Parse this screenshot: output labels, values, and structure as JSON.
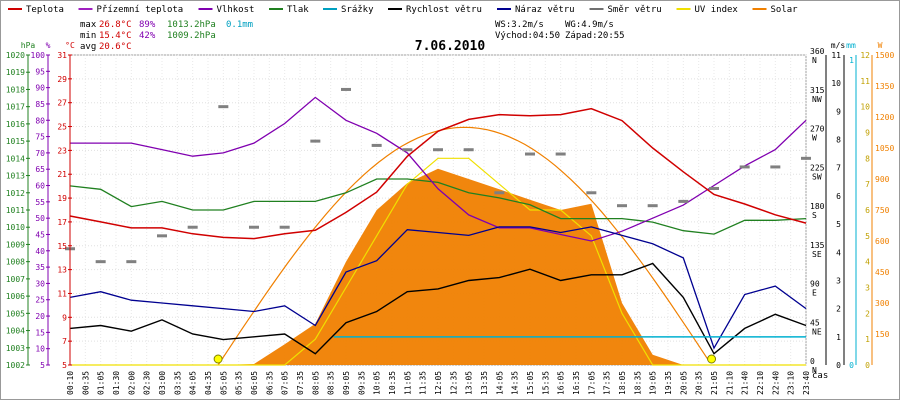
{
  "legend": [
    {
      "label": "Teplota",
      "color": "#d00000"
    },
    {
      "label": "Přízemní teplota",
      "color": "#a020c0"
    },
    {
      "label": "Vlhkost",
      "color": "#8000b0"
    },
    {
      "label": "Tlak",
      "color": "#208020"
    },
    {
      "label": "Srážky",
      "color": "#00a0c0"
    },
    {
      "label": "Rychlost větru",
      "color": "#000000"
    },
    {
      "label": "Náraz větru",
      "color": "#000090"
    },
    {
      "label": "Směr větru",
      "color": "#707070"
    },
    {
      "label": "UV index",
      "color": "#f0e000"
    },
    {
      "label": "Solar",
      "color": "#f08000"
    }
  ],
  "stats": {
    "max": {
      "label": "max",
      "temp": "26.8°C",
      "hum": "89%",
      "pres": "1013.2hPa",
      "rain": "0.1mm"
    },
    "min": {
      "label": "min",
      "temp": "15.4°C",
      "hum": "42%",
      "pres": "1009.2hPa"
    },
    "avg": {
      "label": "avg",
      "temp": "20.6°C"
    }
  },
  "info": {
    "ws": "WS:3.2m/s",
    "wg": "WG:4.9m/s",
    "sunrise": "Východ:04:50",
    "sunset": "Západ:20:55"
  },
  "date": "7.06.2010",
  "xaxis_title": "čas",
  "colors": {
    "temp": "#d00000",
    "hum": "#8000b0",
    "pres": "#208020",
    "rain": "#00b0d0",
    "wind": "#000000",
    "gust": "#000090",
    "dir": "#808080",
    "uv": "#f0e000",
    "solar": "#f08000"
  },
  "chart_data": {
    "type": "line",
    "title": "7.06.2010",
    "xlabel": "čas",
    "x_ticks": [
      "00:10",
      "00:35",
      "01:05",
      "01:30",
      "02:00",
      "02:30",
      "03:00",
      "03:35",
      "04:05",
      "04:35",
      "05:05",
      "05:35",
      "06:05",
      "06:35",
      "07:05",
      "07:35",
      "08:05",
      "08:35",
      "09:05",
      "09:35",
      "10:05",
      "10:35",
      "11:05",
      "11:35",
      "12:05",
      "12:35",
      "13:05",
      "13:35",
      "14:05",
      "14:35",
      "15:05",
      "15:35",
      "16:05",
      "16:35",
      "17:05",
      "17:35",
      "18:05",
      "18:35",
      "19:05",
      "19:35",
      "20:05",
      "20:35",
      "21:05",
      "21:10",
      "21:40",
      "22:10",
      "22:40",
      "23:10",
      "23:40"
    ],
    "axes": {
      "pressure": {
        "unit": "hPa",
        "range": [
          1002,
          1020
        ],
        "ticks": [
          1002,
          1003,
          1004,
          1005,
          1006,
          1007,
          1008,
          1009,
          1010,
          1011,
          1012,
          1013,
          1014,
          1015,
          1016,
          1017,
          1018,
          1019,
          1020
        ]
      },
      "humidity": {
        "unit": "%",
        "range": [
          5,
          100
        ],
        "ticks": [
          5,
          10,
          15,
          20,
          25,
          30,
          35,
          40,
          45,
          50,
          55,
          60,
          65,
          70,
          75,
          80,
          85,
          90,
          95,
          100
        ]
      },
      "temperature": {
        "unit": "°C",
        "range": [
          5,
          31
        ],
        "ticks": [
          5,
          7,
          9,
          11,
          13,
          15,
          17,
          19,
          21,
          23,
          25,
          27,
          29,
          31
        ]
      },
      "wind_dir": {
        "ticks": [
          "0 N",
          "45 NE",
          "90 E",
          "135 SE",
          "180 S",
          "225 SW",
          "270 W",
          "315 NW",
          "360 N"
        ]
      },
      "wind": {
        "unit": "m/s",
        "range": [
          0,
          11
        ],
        "ticks": [
          0,
          1,
          2,
          3,
          4,
          5,
          6,
          7,
          8,
          9,
          10,
          11
        ]
      },
      "rain": {
        "unit": "mm",
        "ticks": [
          0,
          1
        ]
      },
      "solar": {
        "unit": "W",
        "range": [
          0,
          1500
        ],
        "ticks": [
          0,
          150,
          300,
          450,
          600,
          750,
          900,
          1050,
          1200,
          1350,
          1500
        ],
        "uv_ticks": [
          0,
          1,
          2,
          3,
          4,
          5,
          6,
          7,
          8,
          9,
          10,
          11,
          12
        ]
      }
    },
    "hours": [
      0,
      1,
      2,
      3,
      4,
      5,
      6,
      7,
      8,
      9,
      10,
      11,
      12,
      13,
      14,
      15,
      16,
      17,
      18,
      19,
      20,
      21,
      22,
      23,
      24
    ],
    "series": [
      {
        "name": "Teplota",
        "axis": "temperature",
        "values": [
          17.5,
          17.0,
          16.5,
          16.5,
          16.0,
          15.7,
          15.6,
          16.0,
          16.3,
          17.8,
          19.5,
          22.5,
          24.6,
          25.6,
          26.0,
          25.9,
          26.0,
          26.5,
          25.5,
          23.2,
          21.2,
          19.3,
          18.5,
          17.6,
          16.9
        ]
      },
      {
        "name": "Vlhkost",
        "axis": "humidity",
        "values": [
          73,
          73,
          73,
          71,
          69,
          70,
          73,
          79,
          87,
          80,
          76,
          70,
          59,
          51,
          47,
          47,
          45,
          43,
          46,
          50,
          54,
          60,
          66,
          71,
          80
        ]
      },
      {
        "name": "Tlak",
        "axis": "pressure",
        "values": [
          1012.4,
          1012.2,
          1011.2,
          1011.5,
          1011.0,
          1011.0,
          1011.5,
          1011.5,
          1011.5,
          1012.0,
          1012.8,
          1012.8,
          1012.6,
          1012.0,
          1011.7,
          1011.3,
          1010.5,
          1010.5,
          1010.5,
          1010.3,
          1009.8,
          1009.6,
          1010.4,
          1010.4,
          1010.5
        ]
      },
      {
        "name": "Rychlost větru",
        "axis": "wind",
        "values": [
          1.3,
          1.4,
          1.2,
          1.6,
          1.1,
          0.9,
          1.0,
          1.1,
          0.4,
          1.5,
          1.9,
          2.6,
          2.7,
          3.0,
          3.1,
          3.4,
          3.0,
          3.2,
          3.2,
          3.6,
          2.4,
          0.4,
          1.3,
          1.8,
          1.4
        ]
      },
      {
        "name": "Náraz větru",
        "axis": "wind",
        "values": [
          2.4,
          2.6,
          2.3,
          2.2,
          2.1,
          2.0,
          1.9,
          2.1,
          1.4,
          3.3,
          3.7,
          4.8,
          4.7,
          4.6,
          4.9,
          4.9,
          4.7,
          4.9,
          4.6,
          4.3,
          3.8,
          0.6,
          2.5,
          2.8,
          2.0
        ]
      },
      {
        "name": "Směr větru",
        "axis": "wind_dir",
        "values": [
          135,
          120,
          120,
          150,
          160,
          300,
          160,
          160,
          260,
          320,
          255,
          250,
          250,
          250,
          200,
          245,
          245,
          200,
          185,
          185,
          190,
          205,
          230,
          230,
          240
        ]
      },
      {
        "name": "Solar",
        "axis": "solar",
        "values": [
          0,
          0,
          0,
          0,
          0,
          0,
          5,
          100,
          200,
          500,
          750,
          880,
          950,
          900,
          850,
          800,
          750,
          780,
          300,
          50,
          0,
          0,
          0,
          0,
          0
        ]
      },
      {
        "name": "UV index",
        "axis": "solar",
        "values": [
          0,
          0,
          0,
          0,
          0,
          0,
          0,
          0,
          1,
          3,
          5,
          7,
          8,
          8,
          7,
          6,
          6,
          5,
          2,
          0,
          0,
          0,
          0,
          0,
          0
        ]
      },
      {
        "name": "Srážky",
        "axis": "rain",
        "values": [
          0,
          0,
          0,
          0,
          0,
          0,
          0,
          0,
          0,
          0,
          0,
          0,
          0,
          0,
          0,
          0,
          0,
          0,
          0,
          0,
          0,
          0,
          0,
          0,
          0
        ]
      }
    ],
    "solar_theoretical_peak_W": 1150
  }
}
